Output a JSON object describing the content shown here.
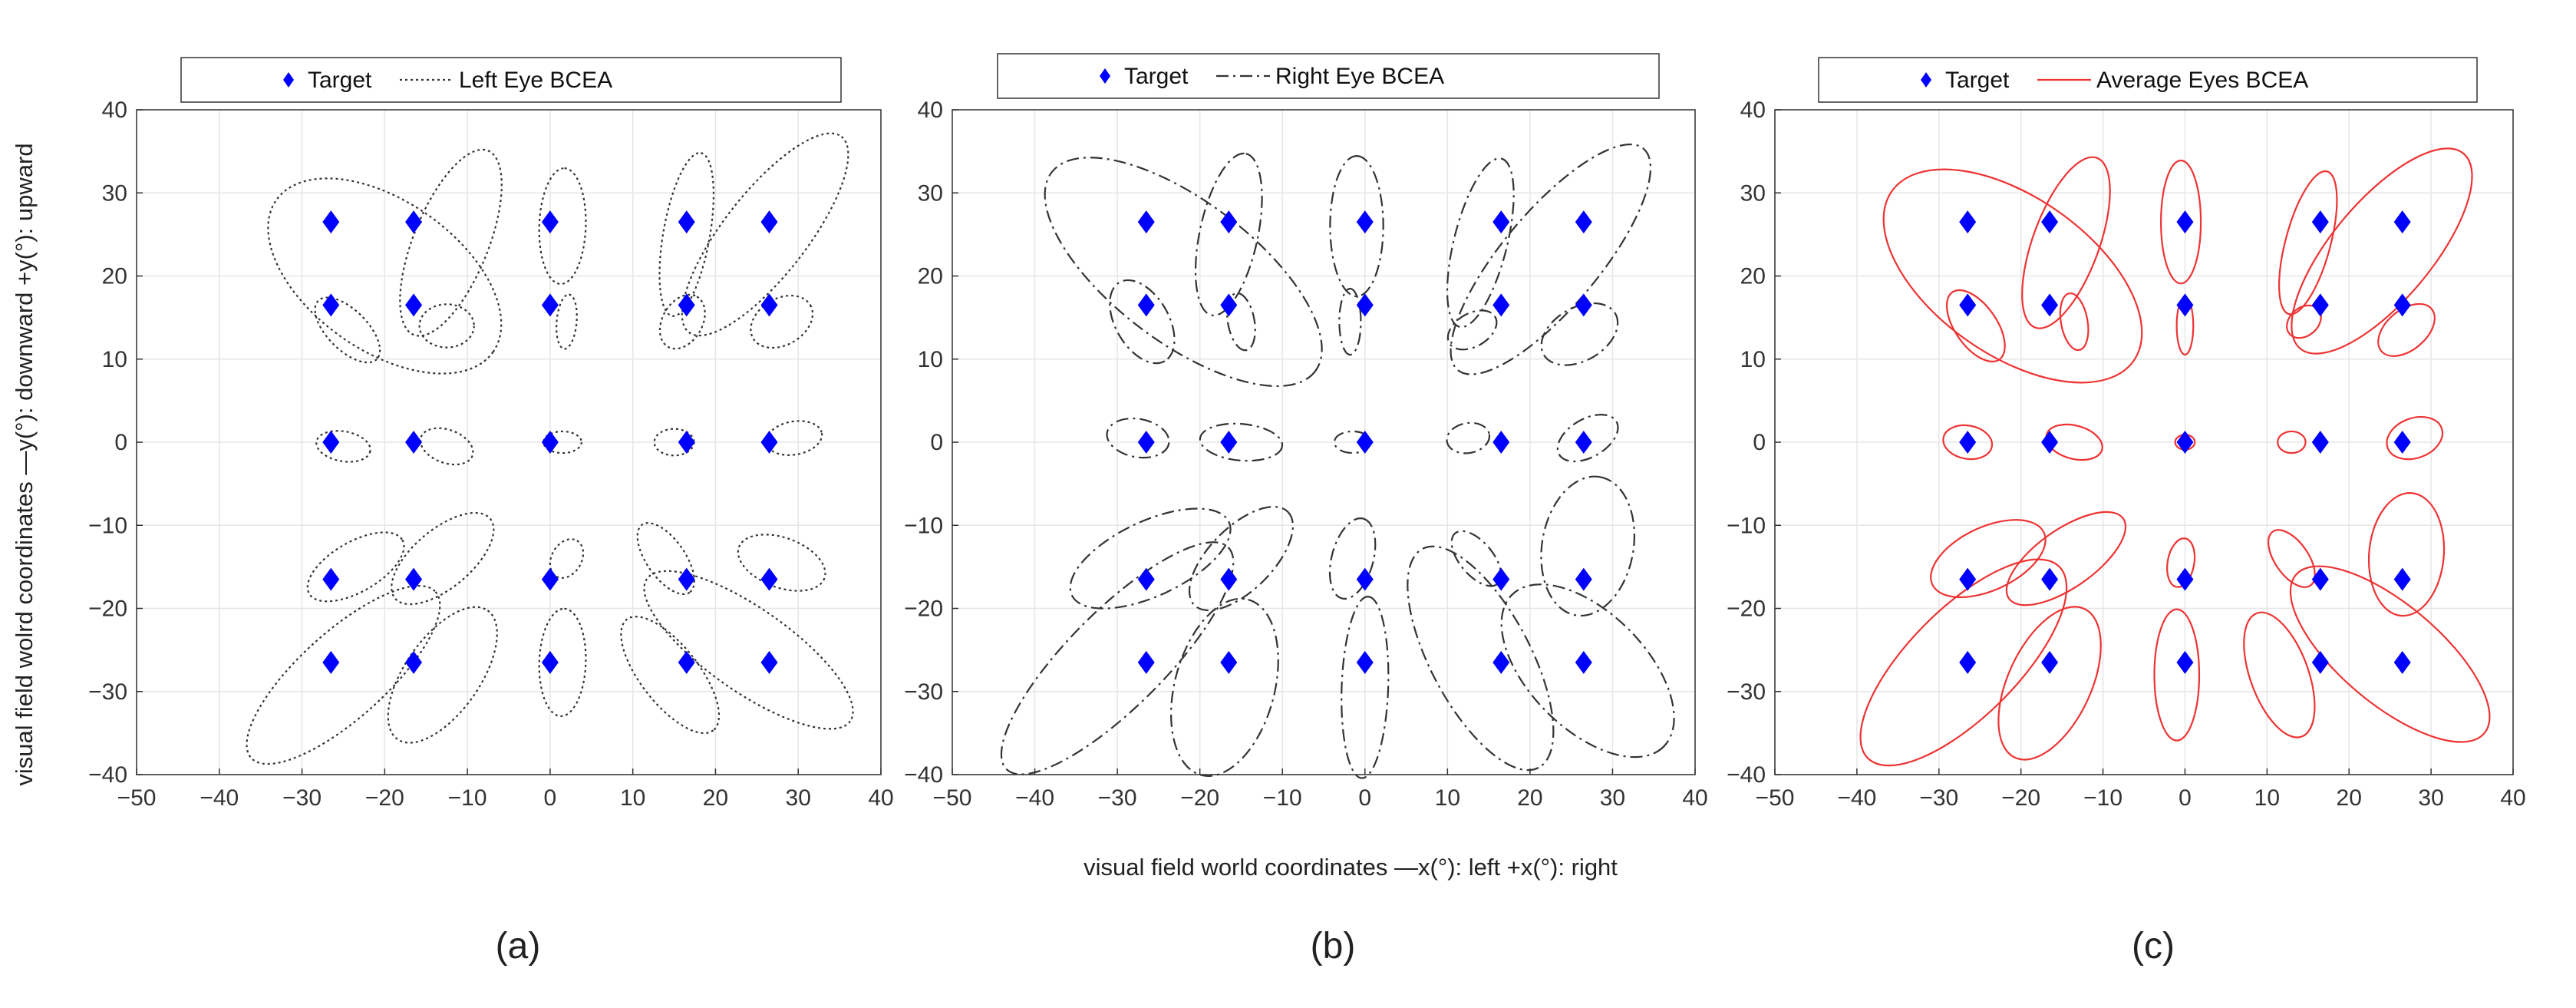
{
  "figure": {
    "xlabel": "visual field world coordinates —x(°): left +x(°): right",
    "ylabel": "visual field wolrd coordinates —y(°): downward +y(°): upward"
  },
  "chart_data": [
    {
      "type": "scatter",
      "panel_label": "(a)",
      "legend": {
        "position": "top",
        "entries": [
          "Target",
          "Left Eye BCEA"
        ]
      },
      "xlim": [
        -50,
        40
      ],
      "ylim": [
        -40,
        40
      ],
      "xticks": [
        -50,
        -40,
        -30,
        -20,
        -10,
        0,
        10,
        20,
        30,
        40
      ],
      "yticks": [
        -40,
        -30,
        -20,
        -10,
        0,
        10,
        20,
        30,
        40
      ],
      "grid": true,
      "series": [
        {
          "name": "Target",
          "marker": "diamond",
          "color": "#0000ff",
          "points": [
            [
              -26.5,
              26.5
            ],
            [
              -16.5,
              26.5
            ],
            [
              0,
              26.5
            ],
            [
              16.5,
              26.5
            ],
            [
              26.5,
              26.5
            ],
            [
              -26.5,
              16.5
            ],
            [
              -16.5,
              16.5
            ],
            [
              0,
              16.5
            ],
            [
              16.5,
              16.5
            ],
            [
              26.5,
              16.5
            ],
            [
              -26.5,
              0
            ],
            [
              -16.5,
              0
            ],
            [
              0,
              0
            ],
            [
              16.5,
              0
            ],
            [
              26.5,
              0
            ],
            [
              -26.5,
              -16.5
            ],
            [
              -16.5,
              -16.5
            ],
            [
              0,
              -16.5
            ],
            [
              16.5,
              -16.5
            ],
            [
              26.5,
              -16.5
            ],
            [
              -26.5,
              -26.5
            ],
            [
              -16.5,
              -26.5
            ],
            [
              0,
              -26.5
            ],
            [
              16.5,
              -26.5
            ],
            [
              26.5,
              -26.5
            ]
          ]
        },
        {
          "name": "Left Eye BCEA",
          "line_style": "dotted",
          "color": "#333333",
          "ellipses": [
            {
              "cx": -20,
              "cy": 20,
              "rx": 16,
              "ry": 9,
              "angle": -35
            },
            {
              "cx": -12,
              "cy": 24,
              "rx": 12,
              "ry": 4.5,
              "angle": 68
            },
            {
              "cx": 1.5,
              "cy": 26,
              "rx": 7,
              "ry": 2.8,
              "angle": 88
            },
            {
              "cx": 16.5,
              "cy": 25,
              "rx": 10,
              "ry": 2.8,
              "angle": 80
            },
            {
              "cx": 26,
              "cy": 25,
              "rx": 15,
              "ry": 5,
              "angle": 52
            },
            {
              "cx": -24.5,
              "cy": 13.5,
              "rx": 5,
              "ry": 2.4,
              "angle": -45
            },
            {
              "cx": -12.5,
              "cy": 14,
              "rx": 3.3,
              "ry": 2.6,
              "angle": 0
            },
            {
              "cx": 2,
              "cy": 14.5,
              "rx": 3.3,
              "ry": 1.2,
              "angle": 85
            },
            {
              "cx": 16,
              "cy": 14.5,
              "rx": 3.5,
              "ry": 2.4,
              "angle": 60
            },
            {
              "cx": 28,
              "cy": 14.5,
              "rx": 4,
              "ry": 2.8,
              "angle": 30
            },
            {
              "cx": -25,
              "cy": -0.5,
              "rx": 3.3,
              "ry": 1.8,
              "angle": -10
            },
            {
              "cx": -12.5,
              "cy": -0.5,
              "rx": 3.3,
              "ry": 2,
              "angle": -20
            },
            {
              "cx": 1.5,
              "cy": 0,
              "rx": 2.3,
              "ry": 1.3,
              "angle": 0
            },
            {
              "cx": 15,
              "cy": 0,
              "rx": 2.4,
              "ry": 1.6,
              "angle": 0
            },
            {
              "cx": 29.5,
              "cy": 0.5,
              "rx": 3.4,
              "ry": 2,
              "angle": 10
            },
            {
              "cx": -23.5,
              "cy": -15,
              "rx": 6.5,
              "ry": 3,
              "angle": 30
            },
            {
              "cx": -13,
              "cy": -14,
              "rx": 7.5,
              "ry": 3.5,
              "angle": 40
            },
            {
              "cx": 2,
              "cy": -14,
              "rx": 2.5,
              "ry": 1.8,
              "angle": 60
            },
            {
              "cx": 14,
              "cy": -14,
              "rx": 5,
              "ry": 2.3,
              "angle": -55
            },
            {
              "cx": 28,
              "cy": -14.5,
              "rx": 5.5,
              "ry": 3,
              "angle": -20
            },
            {
              "cx": -25,
              "cy": -28,
              "rx": 15,
              "ry": 5.2,
              "angle": 42
            },
            {
              "cx": -13,
              "cy": -28,
              "rx": 9.5,
              "ry": 4.5,
              "angle": 55
            },
            {
              "cx": 1.5,
              "cy": -26.5,
              "rx": 6.5,
              "ry": 2.8,
              "angle": 88
            },
            {
              "cx": 14.5,
              "cy": -28,
              "rx": 8.5,
              "ry": 3.5,
              "angle": -52
            },
            {
              "cx": 24,
              "cy": -25,
              "rx": 15,
              "ry": 5,
              "angle": -35
            }
          ]
        }
      ]
    },
    {
      "type": "scatter",
      "panel_label": "(b)",
      "legend": {
        "position": "top",
        "entries": [
          "Target",
          "Right Eye BCEA"
        ]
      },
      "xlim": [
        -50,
        40
      ],
      "ylim": [
        -40,
        40
      ],
      "xticks": [
        -50,
        -40,
        -30,
        -20,
        -10,
        0,
        10,
        20,
        30,
        40
      ],
      "yticks": [
        -40,
        -30,
        -20,
        -10,
        0,
        10,
        20,
        30,
        40
      ],
      "grid": true,
      "series": [
        {
          "name": "Target",
          "marker": "diamond",
          "color": "#0000ff",
          "points": [
            [
              -26.5,
              26.5
            ],
            [
              -16.5,
              26.5
            ],
            [
              0,
              26.5
            ],
            [
              16.5,
              26.5
            ],
            [
              26.5,
              26.5
            ],
            [
              -26.5,
              16.5
            ],
            [
              -16.5,
              16.5
            ],
            [
              0,
              16.5
            ],
            [
              16.5,
              16.5
            ],
            [
              26.5,
              16.5
            ],
            [
              -26.5,
              0
            ],
            [
              -16.5,
              0
            ],
            [
              0,
              0
            ],
            [
              16.5,
              0
            ],
            [
              26.5,
              0
            ],
            [
              -26.5,
              -16.5
            ],
            [
              -16.5,
              -16.5
            ],
            [
              0,
              -16.5
            ],
            [
              16.5,
              -16.5
            ],
            [
              26.5,
              -16.5
            ],
            [
              -26.5,
              -26.5
            ],
            [
              -16.5,
              -26.5
            ],
            [
              0,
              -26.5
            ],
            [
              16.5,
              -26.5
            ],
            [
              26.5,
              -26.5
            ]
          ]
        },
        {
          "name": "Right Eye BCEA",
          "line_style": "dashdot",
          "color": "#333333",
          "ellipses": [
            {
              "cx": -22,
              "cy": 20.5,
              "rx": 20,
              "ry": 8.5,
              "angle": -37
            },
            {
              "cx": -16.5,
              "cy": 25,
              "rx": 10,
              "ry": 3.5,
              "angle": 78
            },
            {
              "cx": -1,
              "cy": 26,
              "rx": 8.5,
              "ry": 3.2,
              "angle": 90
            },
            {
              "cx": 14,
              "cy": 24,
              "rx": 10.5,
              "ry": 3.2,
              "angle": 76
            },
            {
              "cx": 22.5,
              "cy": 22,
              "rx": 17.5,
              "ry": 5.8,
              "angle": 50
            },
            {
              "cx": -27,
              "cy": 14.5,
              "rx": 5.5,
              "ry": 3.2,
              "angle": -60
            },
            {
              "cx": -15,
              "cy": 14.5,
              "rx": 3.5,
              "ry": 1.6,
              "angle": -80
            },
            {
              "cx": -1.8,
              "cy": 14.5,
              "rx": 4,
              "ry": 1.3,
              "angle": 90
            },
            {
              "cx": 13,
              "cy": 13.5,
              "rx": 3.2,
              "ry": 2,
              "angle": 30
            },
            {
              "cx": 26,
              "cy": 13,
              "rx": 5,
              "ry": 3.2,
              "angle": 30
            },
            {
              "cx": -27.5,
              "cy": 0.5,
              "rx": 3.8,
              "ry": 2.3,
              "angle": -10
            },
            {
              "cx": -15,
              "cy": 0,
              "rx": 5,
              "ry": 2.2,
              "angle": -5
            },
            {
              "cx": -1.5,
              "cy": 0,
              "rx": 2.2,
              "ry": 1.3,
              "angle": 0
            },
            {
              "cx": 12.5,
              "cy": 0.5,
              "rx": 2.6,
              "ry": 1.8,
              "angle": 10
            },
            {
              "cx": 27,
              "cy": 0.5,
              "rx": 4,
              "ry": 2.3,
              "angle": 30
            },
            {
              "cx": -26,
              "cy": -14,
              "rx": 10.5,
              "ry": 4.5,
              "angle": 25
            },
            {
              "cx": -15,
              "cy": -14,
              "rx": 8,
              "ry": 3.8,
              "angle": 45
            },
            {
              "cx": -1.5,
              "cy": -14,
              "rx": 5,
              "ry": 2.5,
              "angle": 75
            },
            {
              "cx": 13.5,
              "cy": -14,
              "rx": 4,
              "ry": 2,
              "angle": -50
            },
            {
              "cx": 27,
              "cy": -12.5,
              "rx": 8.5,
              "ry": 5.5,
              "angle": 80
            },
            {
              "cx": -30,
              "cy": -26,
              "rx": 19,
              "ry": 5.8,
              "angle": 45
            },
            {
              "cx": -17,
              "cy": -29.5,
              "rx": 11,
              "ry": 6,
              "angle": 75
            },
            {
              "cx": 0,
              "cy": -29.5,
              "rx": 11,
              "ry": 2.8,
              "angle": 88
            },
            {
              "cx": 14,
              "cy": -26,
              "rx": 15,
              "ry": 6,
              "angle": -62
            },
            {
              "cx": 27,
              "cy": -27.5,
              "rx": 13,
              "ry": 7,
              "angle": -45
            }
          ]
        }
      ]
    },
    {
      "type": "scatter",
      "panel_label": "(c)",
      "legend": {
        "position": "top",
        "entries": [
          "Target",
          "Average Eyes BCEA"
        ]
      },
      "xlim": [
        -50,
        40
      ],
      "ylim": [
        -40,
        40
      ],
      "xticks": [
        -50,
        -40,
        -30,
        -20,
        -10,
        0,
        10,
        20,
        30,
        40
      ],
      "yticks": [
        -40,
        -30,
        -20,
        -10,
        0,
        10,
        20,
        30,
        40
      ],
      "grid": true,
      "series": [
        {
          "name": "Target",
          "marker": "diamond",
          "color": "#0000ff",
          "points": [
            [
              -26.5,
              26.5
            ],
            [
              -16.5,
              26.5
            ],
            [
              0,
              26.5
            ],
            [
              16.5,
              26.5
            ],
            [
              26.5,
              26.5
            ],
            [
              -26.5,
              16.5
            ],
            [
              -16.5,
              16.5
            ],
            [
              0,
              16.5
            ],
            [
              16.5,
              16.5
            ],
            [
              26.5,
              16.5
            ],
            [
              -26.5,
              0
            ],
            [
              -16.5,
              0
            ],
            [
              0,
              0
            ],
            [
              16.5,
              0
            ],
            [
              26.5,
              0
            ],
            [
              -26.5,
              -16.5
            ],
            [
              -16.5,
              -16.5
            ],
            [
              0,
              -16.5
            ],
            [
              16.5,
              -16.5
            ],
            [
              26.5,
              -16.5
            ],
            [
              -26.5,
              -26.5
            ],
            [
              -16.5,
              -26.5
            ],
            [
              0,
              -26.5
            ],
            [
              16.5,
              -26.5
            ],
            [
              26.5,
              -26.5
            ]
          ]
        },
        {
          "name": "Average Eyes BCEA",
          "line_style": "solid",
          "color": "#ee3333",
          "ellipses": [
            {
              "cx": -21,
              "cy": 20,
              "rx": 18,
              "ry": 9.5,
              "angle": -35
            },
            {
              "cx": -14.5,
              "cy": 24,
              "rx": 11,
              "ry": 4,
              "angle": 70
            },
            {
              "cx": -0.5,
              "cy": 26.5,
              "rx": 7.5,
              "ry": 2.4,
              "angle": 90
            },
            {
              "cx": 15,
              "cy": 24,
              "rx": 9,
              "ry": 2.7,
              "angle": 75
            },
            {
              "cx": 24,
              "cy": 23,
              "rx": 15.5,
              "ry": 6,
              "angle": 50
            },
            {
              "cx": -25.5,
              "cy": 14,
              "rx": 5,
              "ry": 2.5,
              "angle": -55
            },
            {
              "cx": -13.5,
              "cy": 14.5,
              "rx": 3.5,
              "ry": 1.6,
              "angle": -80
            },
            {
              "cx": 0,
              "cy": 14,
              "rx": 3.5,
              "ry": 1,
              "angle": 90
            },
            {
              "cx": 14.5,
              "cy": 14.5,
              "rx": 2.3,
              "ry": 1.7,
              "angle": 40
            },
            {
              "cx": 27,
              "cy": 13.5,
              "rx": 4,
              "ry": 2.4,
              "angle": 40
            },
            {
              "cx": -26.5,
              "cy": 0,
              "rx": 3,
              "ry": 2,
              "angle": -10
            },
            {
              "cx": -13.5,
              "cy": 0,
              "rx": 3.5,
              "ry": 2,
              "angle": -15
            },
            {
              "cx": 0,
              "cy": 0,
              "rx": 1.2,
              "ry": 0.9,
              "angle": 0
            },
            {
              "cx": 13,
              "cy": 0,
              "rx": 1.7,
              "ry": 1.3,
              "angle": 0
            },
            {
              "cx": 28,
              "cy": 0.5,
              "rx": 3.5,
              "ry": 2.4,
              "angle": 20
            },
            {
              "cx": -24,
              "cy": -14,
              "rx": 7.5,
              "ry": 3.8,
              "angle": 25
            },
            {
              "cx": -14.5,
              "cy": -14,
              "rx": 8.5,
              "ry": 3.5,
              "angle": 35
            },
            {
              "cx": -0.5,
              "cy": -14.5,
              "rx": 3,
              "ry": 1.6,
              "angle": 80
            },
            {
              "cx": 13,
              "cy": -14,
              "rx": 4,
              "ry": 2,
              "angle": -55
            },
            {
              "cx": 27,
              "cy": -13.5,
              "rx": 7.5,
              "ry": 4.5,
              "angle": 85
            },
            {
              "cx": -27,
              "cy": -26.5,
              "rx": 16.5,
              "ry": 6.5,
              "angle": 45
            },
            {
              "cx": -16.5,
              "cy": -29,
              "rx": 10,
              "ry": 5,
              "angle": 65
            },
            {
              "cx": -1,
              "cy": -28,
              "rx": 8,
              "ry": 2.7,
              "angle": 90
            },
            {
              "cx": 11.5,
              "cy": -28,
              "rx": 8,
              "ry": 3.5,
              "angle": -70
            },
            {
              "cx": 25,
              "cy": -25.5,
              "rx": 15,
              "ry": 6,
              "angle": -40
            }
          ]
        }
      ]
    }
  ]
}
